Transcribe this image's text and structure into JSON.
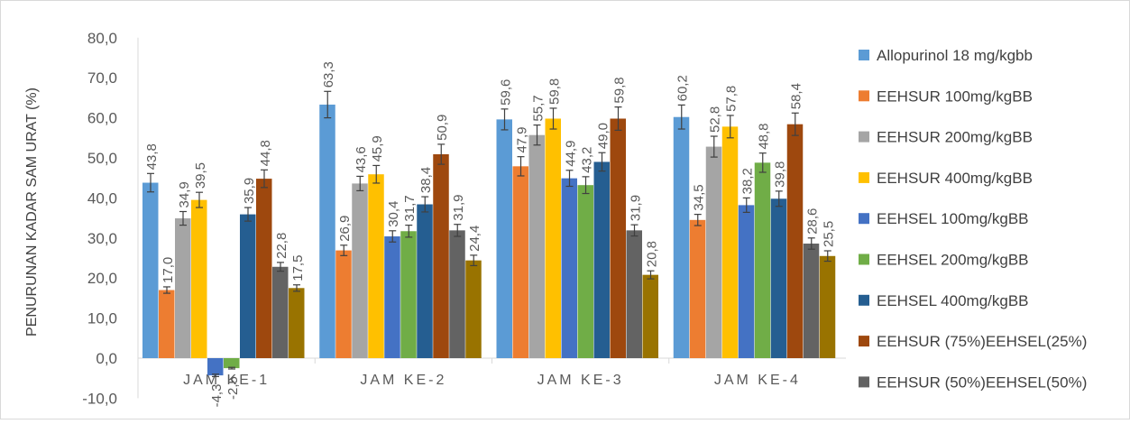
{
  "chart_data": {
    "type": "bar",
    "title": "",
    "xlabel": "",
    "ylabel": "PENURUNAN KADAR SAM URAT (%)",
    "ylim": [
      -10,
      80
    ],
    "yticks": [
      "80,0",
      "70,0",
      "60,0",
      "50,0",
      "40,0",
      "30,0",
      "20,0",
      "10,0",
      "0,0",
      "-10,0"
    ],
    "grid": false,
    "legend_position": "right",
    "error_bars": true,
    "categories": [
      "JAM KE-1",
      "JAM KE-2",
      "JAM KE-3",
      "JAM KE-4"
    ],
    "series": [
      {
        "name": "Allopurinol  18 mg/kgbb",
        "color": "#5B9BD5",
        "values": [
          43.8,
          63.3,
          59.6,
          60.2
        ],
        "labels": [
          "43,8",
          "63,3",
          "59,6",
          "60,2"
        ],
        "errors": [
          2.3,
          3.3,
          2.6,
          3.0
        ]
      },
      {
        "name": "EEHSUR 100mg/kgBB",
        "color": "#ED7D31",
        "values": [
          17.0,
          26.9,
          47.9,
          34.5
        ],
        "labels": [
          "17,0",
          "26,9",
          "47,9",
          "34,5"
        ],
        "errors": [
          0.8,
          1.3,
          2.4,
          1.4
        ]
      },
      {
        "name": "EEHSUR 200mg/kgBB",
        "color": "#A5A5A5",
        "values": [
          34.9,
          43.6,
          55.7,
          52.8
        ],
        "labels": [
          "34,9",
          "43,6",
          "55,7",
          "52,8"
        ],
        "errors": [
          1.7,
          1.8,
          2.5,
          2.6
        ]
      },
      {
        "name": "EEHSUR 400mg/kgBB",
        "color": "#FFC000",
        "values": [
          39.5,
          45.9,
          59.8,
          57.8
        ],
        "labels": [
          "39,5",
          "45,9",
          "59,8",
          "57,8"
        ],
        "errors": [
          1.9,
          2.2,
          2.6,
          2.8
        ]
      },
      {
        "name": "EEHSEL 100mg/kgBB",
        "color": "#4472C4",
        "values": [
          -4.3,
          30.4,
          44.9,
          38.2
        ],
        "labels": [
          "-4,3",
          "30,4",
          "44,9",
          "38,2"
        ],
        "errors": [
          0.3,
          1.4,
          2.0,
          1.8
        ]
      },
      {
        "name": "EEHSEL 200mg/kgBB",
        "color": "#70AD47",
        "values": [
          -2.5,
          31.7,
          43.2,
          48.8
        ],
        "labels": [
          "-2,5",
          "31,7",
          "43,2",
          "48,8"
        ],
        "errors": [
          0.2,
          1.5,
          2.1,
          2.4
        ]
      },
      {
        "name": "EEHSEL 400mg/kgBB",
        "color": "#255E91",
        "values": [
          35.9,
          38.4,
          49.0,
          39.8
        ],
        "labels": [
          "35,9",
          "38,4",
          "49,0",
          "39,8"
        ],
        "errors": [
          1.7,
          1.9,
          2.3,
          1.9
        ]
      },
      {
        "name": "EEHSUR (75%)EEHSEL(25%)",
        "color": "#9E480E",
        "values": [
          44.8,
          50.9,
          59.8,
          58.4
        ],
        "labels": [
          "44,8",
          "50,9",
          "59,8",
          "58,4"
        ],
        "errors": [
          2.2,
          2.5,
          2.9,
          2.8
        ]
      },
      {
        "name": "EEHSUR (50%)EEHSEL(50%)",
        "color": "#636363",
        "values": [
          22.8,
          31.9,
          31.9,
          28.6
        ],
        "labels": [
          "22,8",
          "31,9",
          "31,9",
          "28,6"
        ],
        "errors": [
          1.1,
          1.5,
          1.4,
          1.4
        ]
      },
      {
        "name": "",
        "color": "#997300",
        "values": [
          17.5,
          24.4,
          20.8,
          25.5
        ],
        "labels": [
          "17,5",
          "24,4",
          "20,8",
          "25,5"
        ],
        "errors": [
          0.8,
          1.3,
          1.0,
          1.3
        ]
      }
    ]
  }
}
